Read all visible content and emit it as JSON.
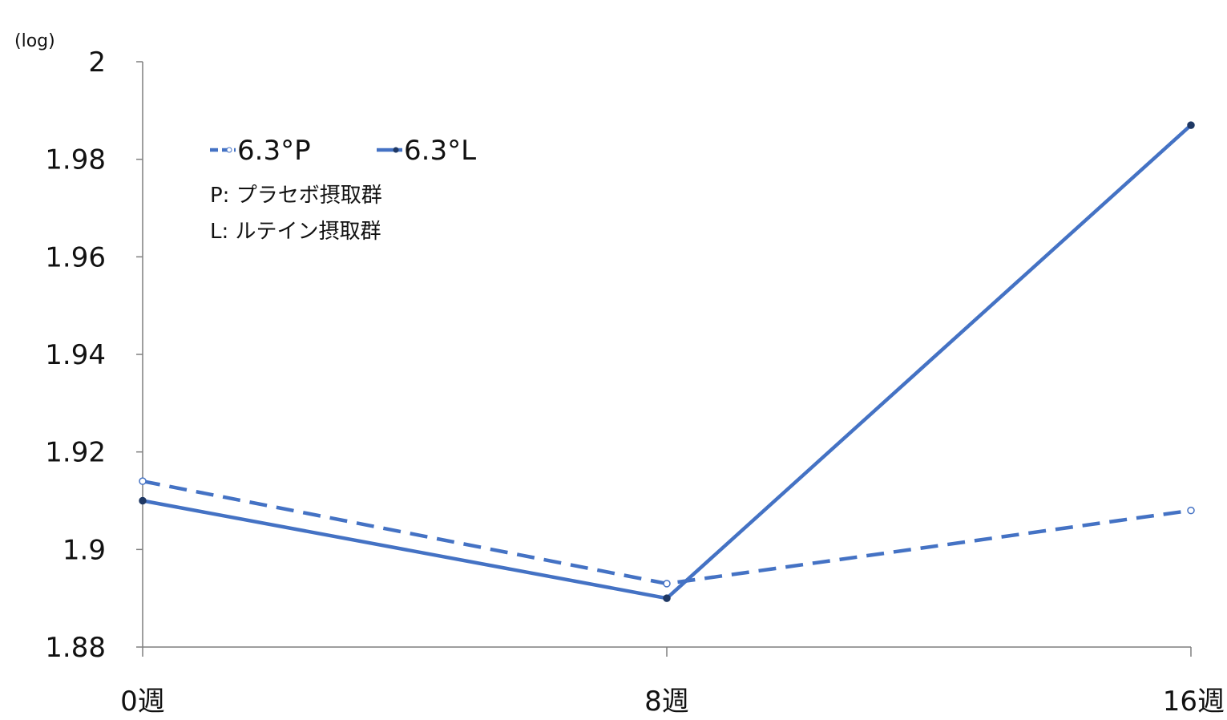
{
  "chart_data": {
    "type": "line",
    "unit_label": "(log)",
    "categories": [
      "0週",
      "8週",
      "16週"
    ],
    "y_ticks": [
      "1.88",
      "1.9",
      "1.92",
      "1.94",
      "1.96",
      "1.98",
      "2"
    ],
    "ylim": [
      1.88,
      2.0
    ],
    "grid": false,
    "legend_position": "top-left",
    "series": [
      {
        "name": "6.3°P",
        "values": [
          1.914,
          1.893,
          1.908
        ],
        "color": "#4472C4",
        "style": "dashed"
      },
      {
        "name": "6.3°L",
        "values": [
          1.91,
          1.89,
          1.987
        ],
        "color": "#4472C4",
        "style": "solid"
      }
    ],
    "notes": [
      "P: プラセボ摂取群",
      "L: ルテイン摂取群"
    ]
  }
}
